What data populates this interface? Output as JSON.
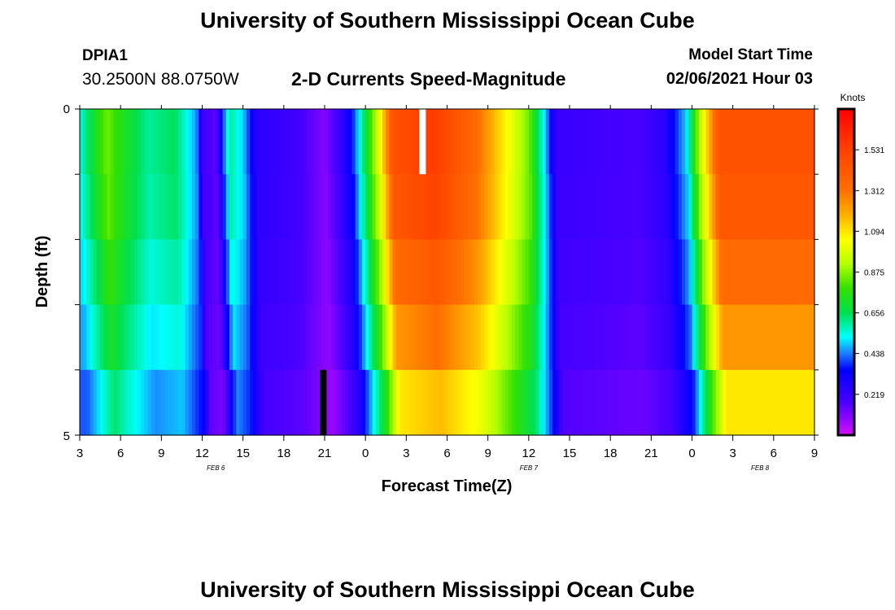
{
  "header": {
    "title": "University of Southern Mississippi Ocean Cube",
    "station_id": "DPIA1",
    "station_coords": "30.2500N 88.0750W",
    "subtitle": "2-D Currents Speed-Magnitude",
    "model_start_label": "Model Start Time",
    "model_start_value": "02/06/2021 Hour 03"
  },
  "footer": {
    "title": "University of Southern Mississippi Ocean Cube"
  },
  "chart_data": {
    "type": "heatmap",
    "xlabel": "Forecast Time(Z)",
    "ylabel": "Depth (ft)",
    "x_tick_labels": [
      "3",
      "6",
      "9",
      "12",
      "15",
      "18",
      "21",
      "0",
      "3",
      "6",
      "9",
      "12",
      "15",
      "18",
      "21",
      "0",
      "3",
      "6",
      "9"
    ],
    "date_labels": [
      {
        "label": "FEB 6",
        "hour_index": 10
      },
      {
        "label": "FEB 7",
        "hour_index": 33
      },
      {
        "label": "FEB 8",
        "hour_index": 50
      }
    ],
    "y_tick_labels": [
      "0",
      "5"
    ],
    "ylim": [
      0,
      5
    ],
    "hours_range": [
      0,
      54
    ],
    "depth_levels": 5,
    "colorbar": {
      "unit": "Knots",
      "range": [
        0.0,
        1.75
      ],
      "ticks": [
        "0.219",
        "0.438",
        "0.656",
        "0.875",
        "1.094",
        "1.312",
        "1.531"
      ]
    },
    "speed_profile_knots": [
      {
        "hour": 0,
        "speed": 0.55
      },
      {
        "hour": 2,
        "speed": 0.85
      },
      {
        "hour": 3,
        "speed": 0.75
      },
      {
        "hour": 5,
        "speed": 0.6
      },
      {
        "hour": 7,
        "speed": 0.65
      },
      {
        "hour": 8.6,
        "speed": 0.45
      },
      {
        "hour": 9,
        "speed": 0.2
      },
      {
        "hour": 10,
        "speed": 0.15
      },
      {
        "hour": 11,
        "speed": 0.6
      },
      {
        "hour": 12,
        "speed": 0.5
      },
      {
        "hour": 13,
        "speed": 0.25
      },
      {
        "hour": 16,
        "speed": 0.2
      },
      {
        "hour": 18,
        "speed": 0.1
      },
      {
        "hour": 19,
        "speed": 0.2
      },
      {
        "hour": 20,
        "speed": 0.35
      },
      {
        "hour": 22,
        "speed": 1.0
      },
      {
        "hour": 23,
        "speed": 1.45
      },
      {
        "hour": 26,
        "speed": 1.55
      },
      {
        "hour": 29,
        "speed": 1.35
      },
      {
        "hour": 31,
        "speed": 1.1
      },
      {
        "hour": 33,
        "speed": 0.85
      },
      {
        "hour": 34.2,
        "speed": 0.5
      },
      {
        "hour": 35,
        "speed": 0.22
      },
      {
        "hour": 38,
        "speed": 0.2
      },
      {
        "hour": 41,
        "speed": 0.18
      },
      {
        "hour": 43,
        "speed": 0.25
      },
      {
        "hour": 44.6,
        "speed": 0.5
      },
      {
        "hour": 45.5,
        "speed": 0.9
      },
      {
        "hour": 47,
        "speed": 1.45
      },
      {
        "hour": 54,
        "speed": 1.45
      }
    ],
    "depth_factors": [
      1.0,
      0.98,
      0.92,
      0.85,
      0.75
    ],
    "depth_offsets": [
      0.0,
      0.1,
      0.2,
      0.3,
      0.55
    ],
    "missing_cells": [
      {
        "hour": 25.2,
        "depth_index": 0,
        "color": "#ffffff"
      },
      {
        "hour": 17.9,
        "depth_index": 4,
        "color": "#000000"
      }
    ]
  }
}
